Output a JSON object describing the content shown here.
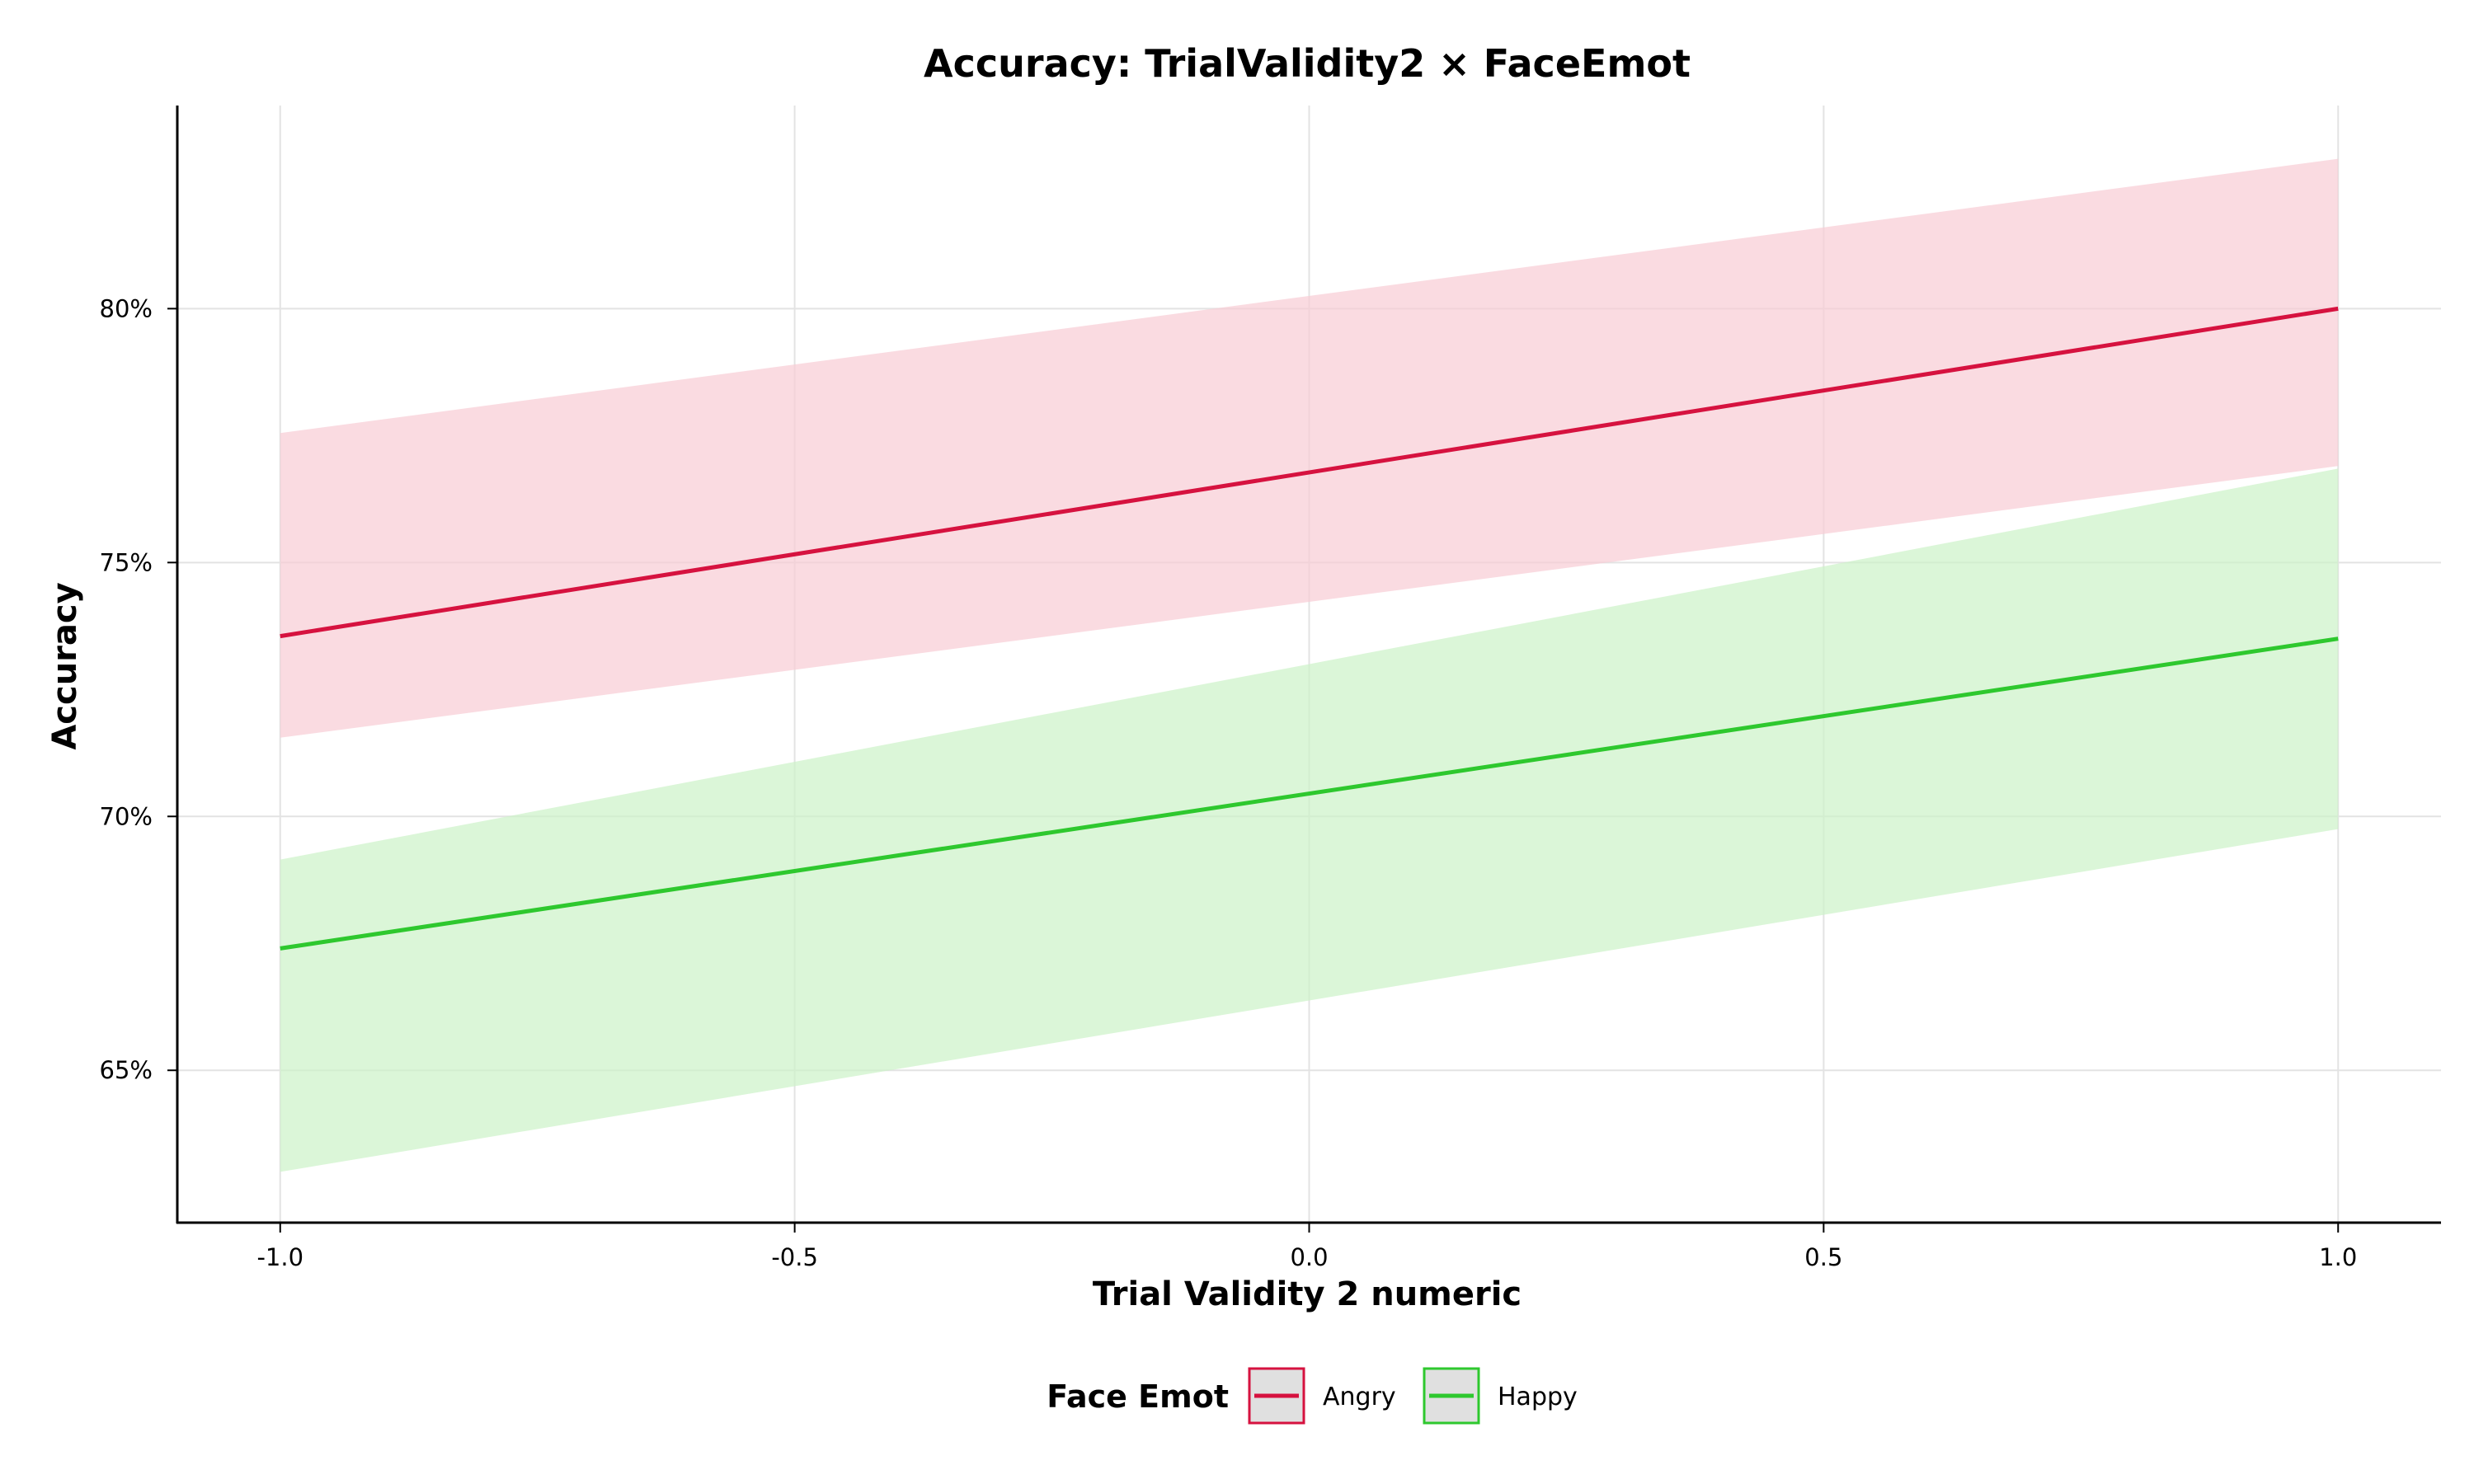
{
  "chart_data": {
    "type": "line",
    "title": "Accuracy: TrialValidity2 × FaceEmot",
    "xlabel": "Trial Validity 2 numeric",
    "ylabel": "Accuracy",
    "xlim": [
      -1.1,
      1.1
    ],
    "ylim": [
      62.0,
      84.0
    ],
    "x_ticks": [
      -1.0,
      -0.5,
      0.0,
      0.5,
      1.0
    ],
    "x_tick_labels": [
      "-1.0",
      "-0.5",
      "0.0",
      "0.5",
      "1.0"
    ],
    "y_ticks": [
      65,
      70,
      75,
      80
    ],
    "y_tick_labels": [
      "65%",
      "70%",
      "75%",
      "80%"
    ],
    "grid": true,
    "legend": {
      "title": "Face Emot",
      "position": "bottom"
    },
    "series": [
      {
        "name": "Angry",
        "color": "#d6123f",
        "band_color": "#f8cdd6",
        "x": [
          -1.0,
          1.0
        ],
        "y": [
          73.55,
          80.0
        ],
        "lower": [
          71.55,
          76.9
        ],
        "upper": [
          77.55,
          82.95
        ]
      },
      {
        "name": "Happy",
        "color": "#2ec82e",
        "band_color": "#cdf2c9",
        "x": [
          -1.0,
          1.0
        ],
        "y": [
          67.4,
          73.5
        ],
        "lower": [
          63.0,
          69.75
        ],
        "upper": [
          69.15,
          76.85
        ]
      }
    ]
  }
}
